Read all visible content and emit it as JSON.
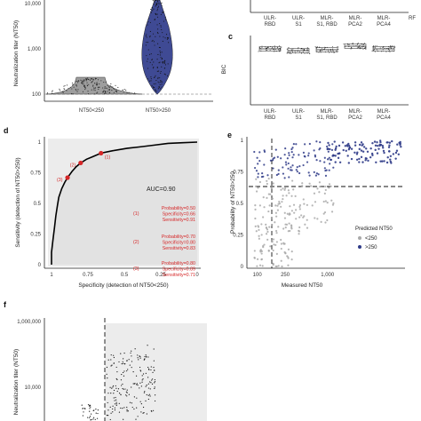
{
  "panels": {
    "a_top": {
      "ylabel": "Neutralization titer (NT50)",
      "yticks": [
        "10,000",
        "1,000",
        "100"
      ],
      "groups": [
        "NT50<250",
        "NT50>250"
      ]
    },
    "b_top": {
      "categories": [
        "ULR-RBD",
        "ULR-S1",
        "MLR-S1, RBD",
        "MLR-PCA2",
        "MLR-PCA4",
        "RF"
      ]
    },
    "c": {
      "label": "c",
      "ylabel": "BIC",
      "categories": [
        "ULR-RBD",
        "ULR-S1",
        "MLR-S1, RBD",
        "MLR-PCA2",
        "MLR-PCA4"
      ]
    },
    "d": {
      "label": "d",
      "ylabel": "Sensitivity (detection of NT50>250)",
      "xlabel": "Specificity (detection of NT50<250)",
      "xticks": [
        "1",
        "0.75",
        "0.5",
        "0.25",
        "0"
      ],
      "yticks": [
        "1",
        "0.75",
        "0.5",
        "0.25",
        "0"
      ],
      "auc": "AUC=0.90",
      "points": [
        {
          "id": "(1)",
          "lines": [
            "Probability=0.50",
            "Specificity=0.66",
            "Sensitivity=0.91"
          ]
        },
        {
          "id": "(2)",
          "lines": [
            "Probability=0.70",
            "Specificity=0.80",
            "Sensitivity=0.83"
          ]
        },
        {
          "id": "(3)",
          "lines": [
            "Probability=0.80",
            "Specificity=0.89",
            "Sensitivity=0.71"
          ]
        }
      ]
    },
    "e": {
      "label": "e",
      "ylabel": "Probability of NT50>250",
      "xlabel": "Measured NT50",
      "xticks": [
        "100",
        "250",
        "1,000"
      ],
      "yticks": [
        "1",
        "0.75",
        "0.5",
        "0.25",
        "0"
      ],
      "legend_title": "Predicted NT50",
      "legend_items": [
        "<250",
        ">250"
      ],
      "colors": {
        "low": "#a9a9a9",
        "high": "#2e3a87"
      }
    },
    "f": {
      "label": "f",
      "ylabel": "Neutralization titer (NT50)",
      "yticks": [
        "1,000,000",
        "10,000"
      ]
    }
  },
  "chart_data": [
    {
      "type": "scatter",
      "panel": "d",
      "title": "",
      "xlabel": "Specificity (detection of NT50<250)",
      "ylabel": "Sensitivity (detection of NT50>250)",
      "x_reversed": true,
      "xlim": [
        1,
        0
      ],
      "ylim": [
        0,
        1
      ],
      "series": [
        {
          "values": [
            [
              1.0,
              0.0
            ],
            [
              1.0,
              0.1
            ],
            [
              0.99,
              0.2
            ],
            [
              0.98,
              0.3
            ],
            [
              0.97,
              0.4
            ],
            [
              0.96,
              0.48
            ],
            [
              0.95,
              0.55
            ],
            [
              0.93,
              0.62
            ],
            [
              0.91,
              0.67
            ],
            [
              0.89,
              0.71
            ],
            [
              0.86,
              0.76
            ],
            [
              0.83,
              0.8
            ],
            [
              0.8,
              0.83
            ],
            [
              0.76,
              0.86
            ],
            [
              0.72,
              0.88
            ],
            [
              0.66,
              0.91
            ],
            [
              0.58,
              0.93
            ],
            [
              0.48,
              0.95
            ],
            [
              0.4,
              0.96
            ],
            [
              0.3,
              0.975
            ],
            [
              0.2,
              0.99
            ],
            [
              0.1,
              0.995
            ],
            [
              0.0,
              1.0
            ]
          ]
        }
      ],
      "highlighted": [
        {
          "label": "(1)",
          "specificity": 0.66,
          "sensitivity": 0.91
        },
        {
          "label": "(2)",
          "specificity": 0.8,
          "sensitivity": 0.83
        },
        {
          "label": "(3)",
          "specificity": 0.89,
          "sensitivity": 0.71
        }
      ],
      "annotation": "AUC=0.90"
    },
    {
      "type": "scatter",
      "panel": "e",
      "xlabel": "Measured NT50",
      "ylabel": "Probability of NT50>250",
      "x_scale": "log",
      "xlim": [
        80,
        12000
      ],
      "ylim": [
        0,
        1
      ],
      "reference_lines": {
        "x": 250,
        "y": 0.7
      },
      "series": [
        {
          "name": "<250",
          "color": "#a9a9a9"
        },
        {
          "name": ">250",
          "color": "#2e3a87"
        }
      ]
    }
  ]
}
